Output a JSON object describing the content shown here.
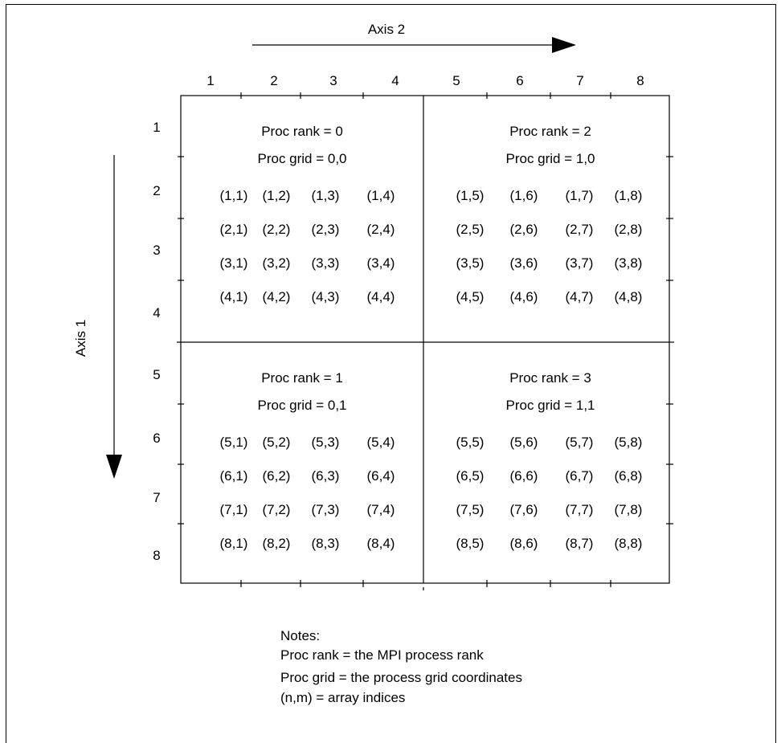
{
  "axes": {
    "axis2_label": "Axis 2",
    "axis1_label": "Axis 1",
    "col_labels": [
      "1",
      "2",
      "3",
      "4",
      "5",
      "6",
      "7",
      "8"
    ],
    "row_labels": [
      "1",
      "2",
      "3",
      "4",
      "5",
      "6",
      "7",
      "8"
    ]
  },
  "blocks": [
    {
      "rank": "Proc rank = 0",
      "grid": "Proc grid = 0,0"
    },
    {
      "rank": "Proc rank = 2",
      "grid": "Proc grid = 1,0"
    },
    {
      "rank": "Proc rank = 1",
      "grid": "Proc grid = 0,1"
    },
    {
      "rank": "Proc rank = 3",
      "grid": "Proc grid = 1,1"
    }
  ],
  "cells": [
    [
      "(1,1)",
      "(1,2)",
      "(1,3)",
      "(1,4)",
      "(1,5)",
      "(1,6)",
      "(1,7)",
      "(1,8)"
    ],
    [
      "(2,1)",
      "(2,2)",
      "(2,3)",
      "(2,4)",
      "(2,5)",
      "(2,6)",
      "(2,7)",
      "(2,8)"
    ],
    [
      "(3,1)",
      "(3,2)",
      "(3,3)",
      "(3,4)",
      "(3,5)",
      "(3,6)",
      "(3,7)",
      "(3,8)"
    ],
    [
      "(4,1)",
      "(4,2)",
      "(4,3)",
      "(4,4)",
      "(4,5)",
      "(4,6)",
      "(4,7)",
      "(4,8)"
    ],
    [
      "(5,1)",
      "(5,2)",
      "(5,3)",
      "(5,4)",
      "(5,5)",
      "(5,6)",
      "(5,7)",
      "(5,8)"
    ],
    [
      "(6,1)",
      "(6,2)",
      "(6,3)",
      "(6,4)",
      "(6,5)",
      "(6,6)",
      "(6,7)",
      "(6,8)"
    ],
    [
      "(7,1)",
      "(7,2)",
      "(7,3)",
      "(7,4)",
      "(7,5)",
      "(7,6)",
      "(7,7)",
      "(7,8)"
    ],
    [
      "(8,1)",
      "(8,2)",
      "(8,3)",
      "(8,4)",
      "(8,5)",
      "(8,6)",
      "(8,7)",
      "(8,8)"
    ]
  ],
  "notes": {
    "heading": "Notes:",
    "lines": [
      "Proc rank = the MPI process rank",
      "Proc grid = the process grid coordinates",
      "(n,m) = array indices"
    ]
  }
}
